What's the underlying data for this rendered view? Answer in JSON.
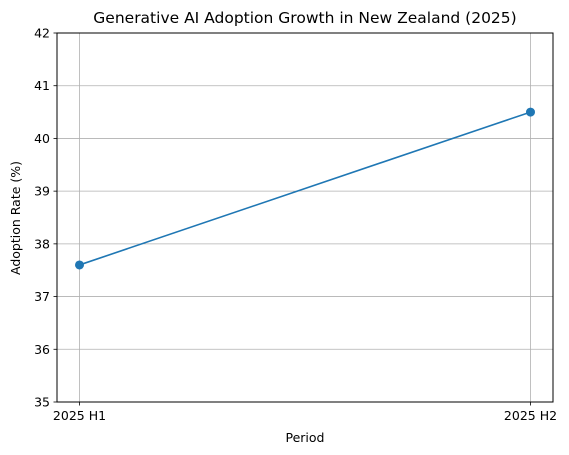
{
  "chart_data": {
    "type": "line",
    "title": "Generative AI Adoption Growth in New Zealand (2025)",
    "xlabel": "Period",
    "ylabel": "Adoption Rate (%)",
    "categories": [
      "2025 H1",
      "2025 H2"
    ],
    "series": [
      {
        "values": [
          37.6,
          40.5
        ],
        "color": "#1f77b4",
        "marker": "circle"
      }
    ],
    "ylim": [
      35,
      42
    ],
    "yticks": [
      35,
      36,
      37,
      38,
      39,
      40,
      41,
      42
    ],
    "grid": true,
    "legend": "none"
  }
}
